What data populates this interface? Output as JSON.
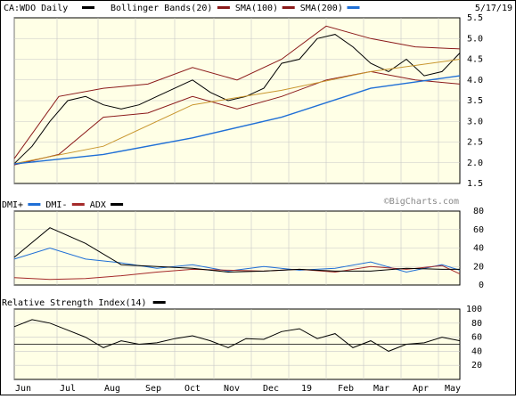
{
  "header": {
    "symbol_label": "CA:WDO Daily",
    "legend": [
      {
        "label": "Bollinger Bands(20)",
        "color": "#8b1a1a"
      },
      {
        "label": "SMA(100)",
        "color": "#b22222"
      },
      {
        "label": "SMA(200)",
        "color": "#1f6fd6"
      }
    ],
    "date": "5/17/19",
    "legend_color_daily": "#000000"
  },
  "watermark": "©BigCharts.com",
  "dmi_legend": [
    {
      "label": "DMI+",
      "color": "#1f6fd6"
    },
    {
      "label": "DMI-",
      "color": "#a52a2a"
    },
    {
      "label": "ADX",
      "color": "#000000"
    }
  ],
  "rsi_legend": {
    "label": "Relative Strength Index(14)",
    "color": "#000000"
  },
  "x_labels": [
    "Jun",
    "Jul",
    "Aug",
    "Sep",
    "Oct",
    "Nov",
    "Dec",
    "19",
    "Feb",
    "Mar",
    "Apr",
    "May"
  ],
  "colors": {
    "panel_bg": "#ffffe6",
    "grid": "#c8c8c8",
    "price": "#000000",
    "bollinger": "#8b1a1a",
    "sma100": "#c8962e",
    "sma200": "#1f6fd6",
    "dmi_plus": "#1f6fd6",
    "dmi_minus": "#a52a2a",
    "adx": "#000000",
    "rsi": "#000000"
  },
  "chart_data": [
    {
      "type": "ohlc",
      "name": "price",
      "y_ticks": [
        "5.5",
        "5.0",
        "4.5",
        "4.0",
        "3.5",
        "3.0",
        "2.5",
        "2.0",
        "1.5"
      ],
      "ylim": [
        1.5,
        5.5
      ],
      "series": [
        {
          "name": "Close",
          "x": [
            0,
            10,
            20,
            30,
            40,
            50,
            60,
            70,
            80,
            90,
            100,
            110,
            120,
            130,
            140,
            150,
            160,
            170,
            180,
            190,
            200,
            210,
            220,
            230,
            240,
            250
          ],
          "values": [
            1.98,
            2.4,
            3.0,
            3.5,
            3.6,
            3.4,
            3.3,
            3.4,
            3.6,
            3.8,
            4.0,
            3.7,
            3.5,
            3.6,
            3.8,
            4.4,
            4.5,
            5.0,
            5.1,
            4.8,
            4.4,
            4.2,
            4.5,
            4.1,
            4.2,
            4.65
          ]
        },
        {
          "name": "Bollinger Upper",
          "x": [
            0,
            25,
            50,
            75,
            100,
            125,
            150,
            175,
            200,
            225,
            250
          ],
          "values": [
            2.1,
            3.6,
            3.8,
            3.9,
            4.3,
            4.0,
            4.5,
            5.3,
            5.0,
            4.8,
            4.75
          ]
        },
        {
          "name": "Bollinger Lower",
          "x": [
            0,
            25,
            50,
            75,
            100,
            125,
            150,
            175,
            200,
            225,
            250
          ],
          "values": [
            1.95,
            2.2,
            3.1,
            3.2,
            3.6,
            3.3,
            3.6,
            4.0,
            4.2,
            4.0,
            3.9
          ]
        },
        {
          "name": "SMA(100)",
          "x": [
            0,
            50,
            100,
            150,
            200,
            250
          ],
          "values": [
            1.98,
            2.4,
            3.4,
            3.75,
            4.2,
            4.5
          ]
        },
        {
          "name": "SMA(200)",
          "x": [
            0,
            50,
            100,
            150,
            200,
            250
          ],
          "values": [
            1.97,
            2.2,
            2.6,
            3.1,
            3.8,
            4.1
          ]
        }
      ]
    },
    {
      "type": "line",
      "name": "dmi",
      "y_ticks": [
        "80",
        "60",
        "40",
        "20",
        "0"
      ],
      "ylim": [
        0,
        80
      ],
      "series": [
        {
          "name": "DMI+",
          "x": [
            0,
            20,
            40,
            60,
            80,
            100,
            120,
            140,
            160,
            180,
            200,
            220,
            240,
            250
          ],
          "values": [
            28,
            40,
            28,
            24,
            18,
            22,
            15,
            20,
            16,
            18,
            25,
            14,
            22,
            16
          ]
        },
        {
          "name": "DMI-",
          "x": [
            0,
            20,
            40,
            60,
            80,
            100,
            120,
            140,
            160,
            180,
            200,
            220,
            240,
            250
          ],
          "values": [
            8,
            6,
            7,
            10,
            14,
            17,
            16,
            15,
            17,
            14,
            20,
            17,
            21,
            12
          ]
        },
        {
          "name": "ADX",
          "x": [
            0,
            20,
            40,
            60,
            80,
            100,
            120,
            140,
            160,
            180,
            200,
            220,
            240,
            250
          ],
          "values": [
            30,
            62,
            45,
            22,
            20,
            18,
            14,
            15,
            17,
            15,
            15,
            18,
            17,
            17
          ]
        }
      ]
    },
    {
      "type": "line",
      "name": "rsi",
      "y_ticks": [
        "100",
        "80",
        "60",
        "40",
        "20"
      ],
      "ylim": [
        0,
        100
      ],
      "reference_line": 50,
      "series": [
        {
          "name": "RSI(14)",
          "x": [
            0,
            10,
            20,
            30,
            40,
            50,
            60,
            70,
            80,
            90,
            100,
            110,
            120,
            130,
            140,
            150,
            160,
            170,
            180,
            190,
            200,
            210,
            220,
            230,
            240,
            250
          ],
          "values": [
            75,
            85,
            80,
            70,
            60,
            45,
            55,
            50,
            52,
            58,
            62,
            55,
            45,
            58,
            57,
            68,
            72,
            58,
            65,
            45,
            55,
            40,
            50,
            52,
            60,
            55
          ]
        }
      ]
    }
  ]
}
